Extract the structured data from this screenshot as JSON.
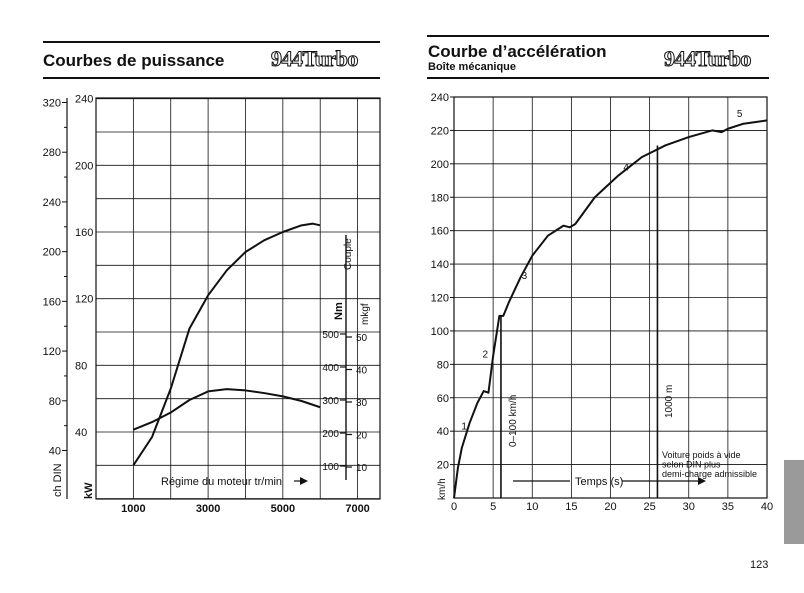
{
  "page": {
    "number": "123",
    "left": {
      "title": "Courbes de puissance",
      "logo": "944Turbo"
    },
    "right": {
      "title": "Courbe d’accélération",
      "subtitle": "Boîte mécanique",
      "logo": "944Turbo"
    }
  },
  "chart_data": [
    {
      "type": "line",
      "title": "Courbes de puissance",
      "xlabel": "Régime du moteur tr/min",
      "xlim": [
        0,
        7600
      ],
      "x_ticks": [
        "1000",
        "3000",
        "5000",
        "7000"
      ],
      "x_tick_values": [
        1000,
        3000,
        5000,
        7000
      ],
      "axes": {
        "ch_din": {
          "label": "ch DIN",
          "ticks": [
            40,
            80,
            120,
            160,
            200,
            240,
            280,
            320
          ]
        },
        "kw": {
          "label": "kW",
          "ticks": [
            40,
            80,
            120,
            160,
            200,
            240
          ]
        },
        "nm": {
          "label": "Nm",
          "ticks": [
            100,
            200,
            300,
            400,
            500
          ]
        },
        "mkgf": {
          "label": "mkgf",
          "ticks": [
            10,
            20,
            30,
            40,
            50
          ]
        },
        "couple_label": "Couple"
      },
      "grid": true,
      "series": [
        {
          "unit": "kW",
          "x": [
            1000,
            1500,
            2000,
            2500,
            3000,
            3500,
            4000,
            4500,
            5000,
            5500,
            5800,
            6000
          ],
          "values": [
            20,
            37,
            66,
            102,
            122,
            137,
            148,
            155,
            160,
            164,
            165,
            164
          ]
        },
        {
          "unit": "Nm",
          "x": [
            1000,
            1500,
            2000,
            2500,
            3000,
            3500,
            4000,
            4500,
            5000,
            5500,
            6000
          ],
          "values": [
            210,
            233,
            262,
            300,
            326,
            333,
            329,
            321,
            311,
            297,
            278
          ]
        }
      ]
    },
    {
      "type": "line",
      "title": "Courbe d’accélération",
      "subtitle": "Boîte mécanique",
      "xlabel": "Temps (s)",
      "ylabel": "km/h",
      "xlim": [
        0,
        40
      ],
      "ylim": [
        0,
        240
      ],
      "x_ticks": [
        0,
        5,
        10,
        15,
        20,
        25,
        30,
        35,
        40
      ],
      "y_ticks": [
        20,
        40,
        60,
        80,
        100,
        120,
        140,
        160,
        180,
        200,
        220,
        240
      ],
      "grid": true,
      "series": [
        {
          "x": [
            0,
            0.5,
            1,
            2,
            3,
            3.8,
            4.4,
            5,
            5.8,
            6.3,
            7,
            8.5,
            10,
            12,
            14,
            14.8,
            15.5,
            18,
            21,
            24,
            27,
            30,
            33,
            34.2,
            35,
            37,
            40
          ],
          "values": [
            0,
            18,
            30,
            45,
            57,
            64,
            63,
            85,
            109,
            109,
            117,
            132,
            145,
            157,
            163,
            162,
            164,
            180,
            193,
            204,
            211,
            216,
            220,
            219,
            221,
            224,
            226
          ]
        }
      ],
      "gear_labels": [
        {
          "label": "1",
          "x": 1.3,
          "y": 41
        },
        {
          "label": "2",
          "x": 4,
          "y": 84
        },
        {
          "label": "3",
          "x": 9,
          "y": 131
        },
        {
          "label": "4",
          "x": 22,
          "y": 196
        },
        {
          "label": "5",
          "x": 36.5,
          "y": 228
        }
      ],
      "markers": [
        {
          "label": "0–100 km/h",
          "x": 6
        },
        {
          "label": "1000 m",
          "x": 26
        }
      ],
      "annotation": [
        "Voiture poids à vide",
        "selon DIN plus",
        "demi-charge admissible"
      ]
    }
  ]
}
